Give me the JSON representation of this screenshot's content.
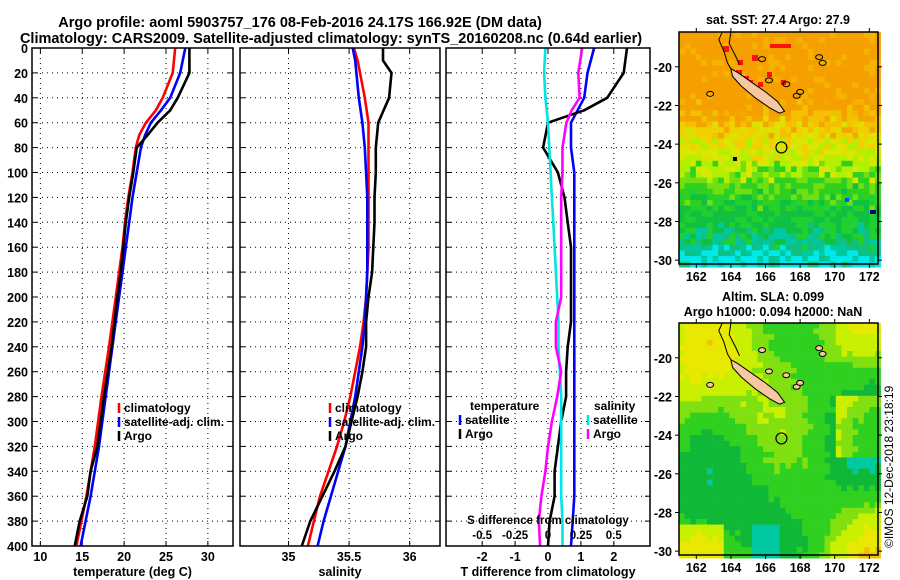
{
  "header": {
    "title_line1": "Argo profile: aoml 5903757_176 08-Feb-2016 24.17S 166.92E (DM data)",
    "title_line2": "Climatology: CARS2009. Satellite-adjusted climatology: synTS_20160208.nc (0.64d earlier)"
  },
  "colors": {
    "climatology": "#ff0000",
    "satellite": "#0000ff",
    "argo": "#000000",
    "s_satellite": "#00e5e5",
    "s_argo": "#ff00ff"
  },
  "credit": "©IMOS 12-Dec-2018 23:18:19",
  "chart_data": [
    {
      "id": "temperature",
      "type": "line",
      "title": "",
      "xlabel": "temperature (deg C)",
      "ylabel": "",
      "xlim": [
        9,
        33
      ],
      "ylim": [
        400,
        0
      ],
      "xticks": [
        "10",
        "15",
        "20",
        "25",
        "30"
      ],
      "xtick_values": [
        10,
        15,
        20,
        25,
        30
      ],
      "yticks": [
        "0",
        "20",
        "40",
        "60",
        "80",
        "100",
        "120",
        "140",
        "160",
        "180",
        "200",
        "220",
        "240",
        "260",
        "280",
        "300",
        "320",
        "340",
        "360",
        "380",
        "400"
      ],
      "grid": true,
      "legend": {
        "placement": "lower-right",
        "entries": [
          "climatology",
          "satellite-adj. clim.",
          "Argo"
        ]
      },
      "depth": [
        0,
        20,
        40,
        50,
        60,
        70,
        80,
        100,
        120,
        140,
        160,
        180,
        200,
        240,
        280,
        320,
        340,
        360,
        380,
        400
      ],
      "series": [
        {
          "name": "climatology",
          "color": "#ff0000",
          "values": [
            26.1,
            25.8,
            24.6,
            23.8,
            22.6,
            21.8,
            21.4,
            21.0,
            20.5,
            20.1,
            19.8,
            19.4,
            19.0,
            18.2,
            17.3,
            16.5,
            16.0,
            15.5,
            14.9,
            14.3
          ]
        },
        {
          "name": "satellite-adj. clim.",
          "color": "#0000ff",
          "values": [
            27.3,
            26.7,
            25.5,
            24.4,
            23.2,
            22.5,
            22.0,
            21.5,
            21.0,
            20.6,
            20.2,
            19.8,
            19.4,
            18.6,
            17.8,
            17.0,
            16.5,
            16.0,
            15.4,
            14.8
          ]
        },
        {
          "name": "Argo",
          "color": "#000000",
          "values": [
            27.8,
            27.8,
            26.4,
            25.5,
            24.0,
            22.8,
            21.5,
            21.1,
            20.6,
            20.2,
            19.9,
            19.6,
            19.2,
            18.5,
            17.6,
            16.8,
            16.0,
            15.6,
            14.7,
            14.1
          ]
        }
      ]
    },
    {
      "id": "salinity",
      "type": "line",
      "title": "",
      "xlabel": "salinity",
      "ylabel": "",
      "xlim": [
        34.6,
        36.25
      ],
      "ylim": [
        400,
        0
      ],
      "xticks": [
        "35",
        "35.5",
        "36"
      ],
      "xtick_values": [
        35,
        35.5,
        36
      ],
      "grid": true,
      "legend": {
        "placement": "lower-right",
        "entries": [
          "climatology",
          "satellite-adj. clim.",
          "Argo"
        ]
      },
      "depth": [
        0,
        10,
        20,
        40,
        60,
        80,
        100,
        120,
        140,
        160,
        180,
        200,
        220,
        240,
        260,
        280,
        300,
        320,
        340,
        360,
        380,
        400
      ],
      "series": [
        {
          "name": "climatology",
          "color": "#ff0000",
          "values": [
            35.54,
            35.57,
            35.59,
            35.63,
            35.66,
            35.66,
            35.66,
            35.66,
            35.66,
            35.66,
            35.65,
            35.64,
            35.62,
            35.59,
            35.55,
            35.51,
            35.46,
            35.4,
            35.33,
            35.26,
            35.21,
            35.16
          ]
        },
        {
          "name": "satellite-adj. clim.",
          "color": "#0000ff",
          "values": [
            35.53,
            35.55,
            35.56,
            35.58,
            35.61,
            35.63,
            35.64,
            35.65,
            35.65,
            35.65,
            35.65,
            35.64,
            35.63,
            35.61,
            35.58,
            35.55,
            35.51,
            35.47,
            35.41,
            35.35,
            35.29,
            35.24
          ]
        },
        {
          "name": "Argo",
          "color": "#000000",
          "values": [
            35.78,
            35.78,
            35.85,
            35.83,
            35.74,
            35.72,
            35.72,
            35.71,
            35.71,
            35.7,
            35.69,
            35.66,
            35.64,
            35.64,
            35.61,
            35.57,
            35.52,
            35.47,
            35.38,
            35.28,
            35.18,
            35.11
          ]
        }
      ]
    },
    {
      "id": "difference",
      "type": "line",
      "title": "",
      "xlabel": "T difference from climatology",
      "x2label": "S difference from climatology",
      "ylabel": "",
      "xlim": [
        -3.1,
        3.1
      ],
      "ylim": [
        400,
        0
      ],
      "xticks": [
        "-2",
        "-1",
        "0",
        "1",
        "2"
      ],
      "xtick_values": [
        -2,
        -1,
        0,
        1,
        2
      ],
      "x2ticks": [
        "-0.5",
        "-0.25",
        "0",
        "0.25",
        "0.5"
      ],
      "grid": true,
      "legend": {
        "placement": "lower",
        "temperature_header": "temperature",
        "salinity_header": "salinity",
        "entries": [
          "satellite",
          "Argo",
          "satellite",
          "Argo"
        ]
      },
      "depth": [
        0,
        20,
        40,
        50,
        60,
        80,
        100,
        120,
        140,
        160,
        180,
        200,
        220,
        240,
        260,
        280,
        300,
        320,
        340,
        360,
        380,
        400
      ],
      "series": [
        {
          "name": "temperature satellite",
          "color": "#0000ff",
          "values": [
            1.4,
            1.2,
            1.1,
            0.9,
            0.7,
            0.7,
            0.8,
            0.8,
            0.8,
            0.8,
            0.8,
            0.8,
            0.8,
            0.8,
            0.8,
            0.8,
            0.8,
            0.8,
            0.8,
            0.8,
            0.75,
            0.7
          ]
        },
        {
          "name": "temperature Argo",
          "color": "#000000",
          "values": [
            2.4,
            2.3,
            1.8,
            1.1,
            0.0,
            -0.15,
            0.3,
            0.5,
            0.6,
            0.7,
            0.7,
            0.7,
            0.7,
            0.6,
            0.55,
            0.55,
            0.4,
            0.3,
            0.2,
            0.2,
            0.05,
            0.0
          ]
        },
        {
          "name": "salinity satellite",
          "color": "#00e5e5",
          "values": [
            -0.02,
            -0.03,
            -0.02,
            -0.01,
            0.0,
            0.01,
            0.02,
            0.03,
            0.04,
            0.05,
            0.06,
            0.07,
            0.08,
            0.08,
            0.09,
            0.1,
            0.1,
            0.1,
            0.1,
            0.1,
            0.11,
            0.11
          ]
        },
        {
          "name": "salinity Argo",
          "color": "#ff00ff",
          "values": [
            0.26,
            0.23,
            0.24,
            0.18,
            0.14,
            0.11,
            0.11,
            0.1,
            0.1,
            0.1,
            0.1,
            0.1,
            0.06,
            0.06,
            0.1,
            0.07,
            0.03,
            0.0,
            -0.02,
            -0.05,
            -0.07,
            -0.06
          ]
        }
      ]
    },
    {
      "id": "sst-map",
      "type": "heatmap",
      "title": "sat. SST: 27.4 Argo: 27.9",
      "xlabel": "",
      "ylabel": "",
      "xlim": [
        161,
        172.5
      ],
      "ylim": [
        -30.2,
        -18.2
      ],
      "xticks": [
        "162",
        "164",
        "166",
        "168",
        "170",
        "172"
      ],
      "yticks": [
        "-20",
        "-22",
        "-24",
        "-26",
        "-28",
        "-30"
      ],
      "profile_location": {
        "lon": 166.92,
        "lat": -24.17
      },
      "description": "Satellite SST field: orange (warm) north of ~23S, yellow band near 23-24S, green south, cyan near 30S"
    },
    {
      "id": "sla-map",
      "type": "heatmap",
      "title": "Altim. SLA: 0.099",
      "subtitle": "Argo h1000: 0.094 h2000: NaN",
      "xlabel": "",
      "ylabel": "",
      "xlim": [
        161,
        172.5
      ],
      "ylim": [
        -30.2,
        -18.2
      ],
      "xticks": [
        "162",
        "164",
        "166",
        "168",
        "170",
        "172"
      ],
      "yticks": [
        "-20",
        "-22",
        "-24",
        "-26",
        "-28",
        "-30"
      ],
      "profile_location": {
        "lon": 166.92,
        "lat": -24.17
      },
      "description": "Sea level anomaly field: green background with yellow/orange highs near 171E 23S and 162E 30S"
    }
  ]
}
